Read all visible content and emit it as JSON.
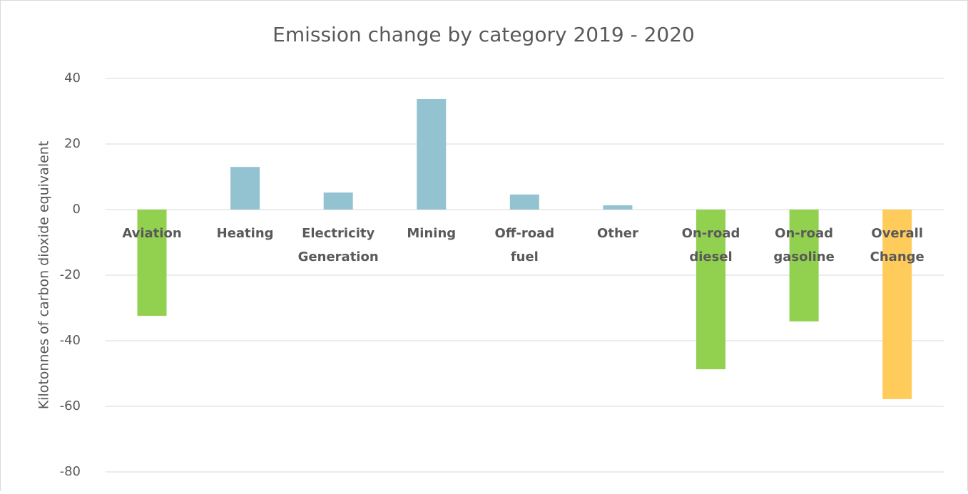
{
  "chart_data": {
    "type": "bar",
    "title": "Emission change by category 2019 - 2020",
    "y_label": "Kilotonnes of carbon dioxide equivalent",
    "categories": [
      "Aviation",
      "Heating",
      "Electricity Generation",
      "Mining",
      "Off-road fuel",
      "Other",
      "On-road diesel",
      "On-road gasoline",
      "Overall Change"
    ],
    "values": [
      -32.4,
      13.0,
      5.2,
      33.7,
      4.6,
      1.3,
      -48.7,
      -34.1,
      -57.8
    ],
    "colors": [
      "#92d050",
      "#93c3d1",
      "#93c3d1",
      "#93c3d1",
      "#93c3d1",
      "#93c3d1",
      "#92d050",
      "#92d050",
      "#ffcc5c"
    ],
    "ylim": [
      -80,
      40
    ],
    "yticks": [
      -80,
      -60,
      -40,
      -20,
      0,
      20,
      40
    ],
    "grid": true
  }
}
